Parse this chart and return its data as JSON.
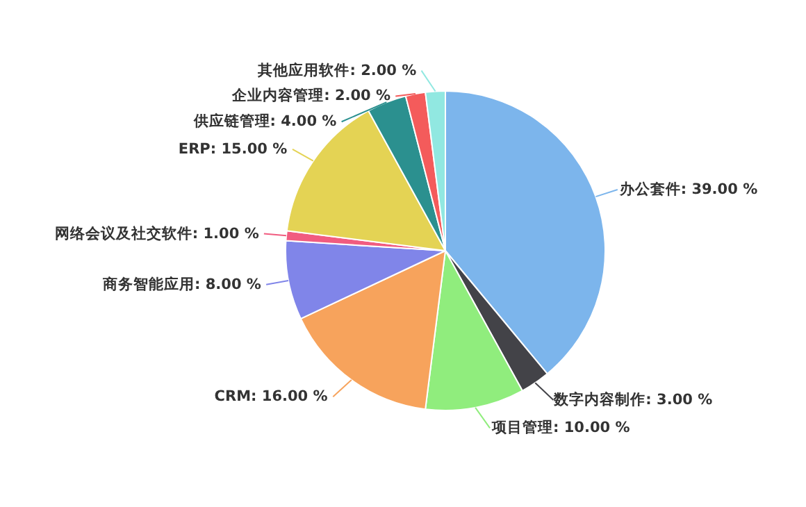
{
  "chart_data": {
    "type": "pie",
    "categories": [
      "办公套件",
      "数字内容制作",
      "项目管理",
      "CRM",
      "商务智能应用",
      "网络会议及社交软件",
      "ERP",
      "供应链管理",
      "企业内容管理",
      "其他应用软件"
    ],
    "values": [
      39,
      3,
      10,
      16,
      8,
      1,
      15,
      4,
      2,
      2
    ],
    "colors": [
      "#7cb5ec",
      "#434348",
      "#90ed7d",
      "#f7a35c",
      "#8085e9",
      "#f15c80",
      "#e4d354",
      "#2b908f",
      "#f45b5b",
      "#91e8e1"
    ],
    "value_labels": [
      ": 39.00 %",
      ": 3.00 %",
      ": 10.00 %",
      ": 16.00 %",
      ": 8.00 %",
      ": 1.00 %",
      ": 15.00 %",
      ": 4.00 %",
      ": 2.00 %",
      ": 2.00 %"
    ]
  }
}
